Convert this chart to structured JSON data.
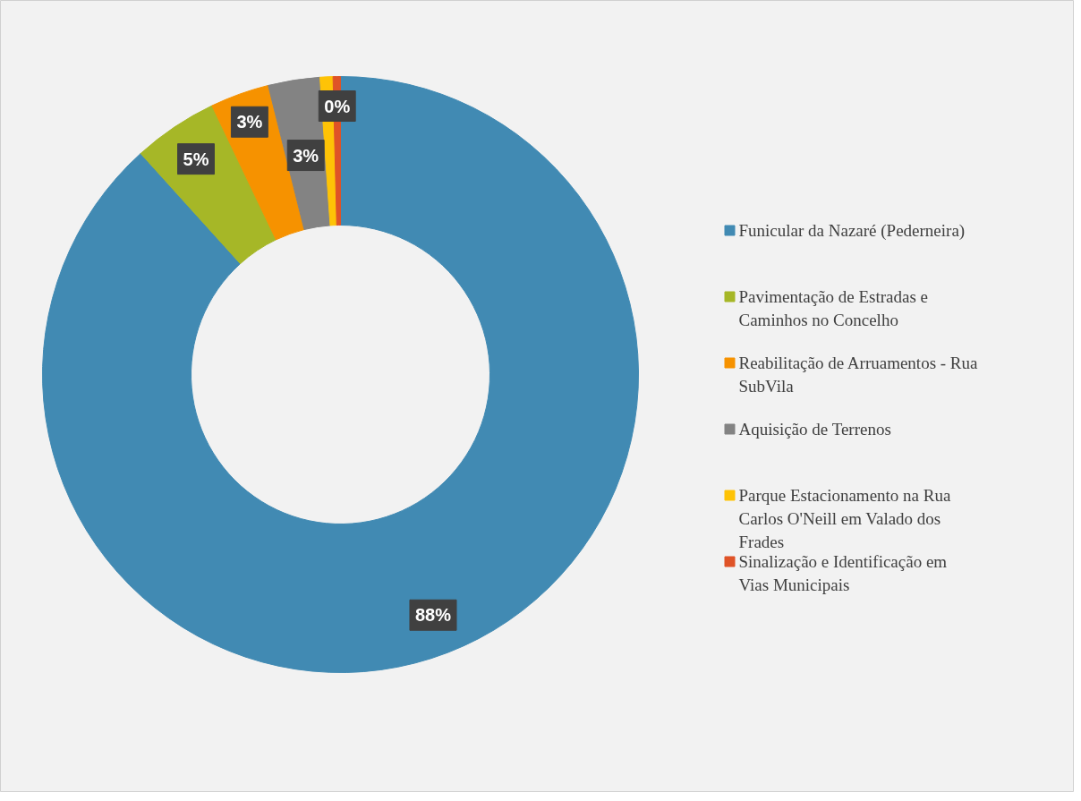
{
  "chart_data": {
    "type": "donut",
    "categories": [
      "Funicular da Nazaré (Pederneira)",
      "Pavimentação de Estradas e Caminhos no Concelho",
      "Reabilitação de Arruamentos - Rua SubVila",
      "Aquisição de Terrenos",
      "Parque Estacionamento na Rua Carlos O'Neill em Valado dos Frades",
      "Sinalização e Identificação em Vias Municipais"
    ],
    "values": [
      88.3,
      4.6,
      3.2,
      2.8,
      0.7,
      0.4
    ],
    "colors": [
      "#418ab3",
      "#a6b727",
      "#f69200",
      "#838383",
      "#fec306",
      "#df5327"
    ],
    "value_labels": [
      "88%",
      "5%",
      "3%",
      "3%",
      null,
      "0%"
    ],
    "legend": "right"
  }
}
